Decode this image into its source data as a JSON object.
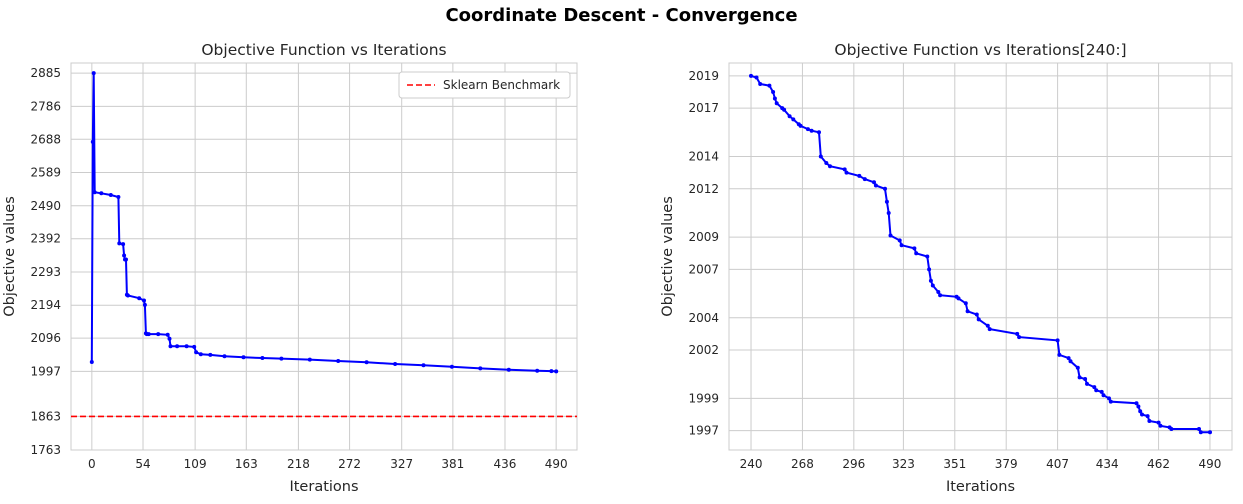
{
  "figure": {
    "suptitle": "Coordinate Descent - Convergence"
  },
  "chart_data": [
    {
      "type": "line",
      "title": "Objective Function vs Iterations",
      "xlabel": "Iterations",
      "ylabel": "Objective values",
      "xlim": [
        -22,
        512
      ],
      "ylim": [
        1763,
        2915
      ],
      "xticks": [
        0,
        54,
        109,
        163,
        218,
        272,
        327,
        381,
        436,
        490
      ],
      "yticks": [
        1763,
        1863,
        1997,
        2096,
        2194,
        2293,
        2392,
        2490,
        2589,
        2688,
        2786,
        2885
      ],
      "grid": true,
      "legend": {
        "position": "top-right",
        "entries": [
          "Sklearn Benchmark"
        ]
      },
      "series": [
        {
          "color": "#0000ff",
          "style": "solid-with-markers",
          "x": [
            0,
            1,
            2,
            3,
            10,
            20,
            28,
            29,
            33,
            34,
            35,
            36,
            37,
            38,
            50,
            55,
            56,
            57,
            58,
            60,
            70,
            80,
            82,
            83,
            90,
            100,
            108,
            110,
            115,
            125,
            140,
            160,
            180,
            200,
            230,
            260,
            290,
            320,
            350,
            380,
            410,
            440,
            470,
            485,
            490
          ],
          "y": [
            2025,
            2680,
            2885,
            2530,
            2527,
            2522,
            2516,
            2378,
            2376,
            2342,
            2330,
            2330,
            2225,
            2223,
            2215,
            2208,
            2195,
            2110,
            2108,
            2108,
            2108,
            2106,
            2094,
            2072,
            2072,
            2072,
            2070,
            2054,
            2048,
            2046,
            2042,
            2039,
            2037,
            2035,
            2032,
            2028,
            2024,
            2019,
            2015,
            2011,
            2006,
            2002,
            1999,
            1998,
            1997
          ]
        },
        {
          "name": "Sklearn Benchmark",
          "color": "#ff0000",
          "style": "dashed",
          "y": 1863
        }
      ]
    },
    {
      "type": "line",
      "title": "Objective Function vs Iterations[240:]",
      "xlabel": "Iterations",
      "ylabel": "Objective values",
      "xlim": [
        228,
        502
      ],
      "ylim": [
        1995.8,
        2019.8
      ],
      "xticks": [
        240,
        268,
        296,
        323,
        351,
        379,
        407,
        434,
        462,
        490
      ],
      "yticks": [
        1997,
        1999,
        2002,
        2004,
        2007,
        2009,
        2012,
        2014,
        2017,
        2019
      ],
      "grid": true,
      "series": [
        {
          "color": "#0000ff",
          "style": "solid-with-markers",
          "x": [
            240,
            243,
            245,
            250,
            252,
            253,
            254,
            257,
            258,
            261,
            263,
            266,
            267,
            271,
            273,
            277,
            278,
            281,
            283,
            291,
            292,
            299,
            302,
            307,
            308,
            313,
            314,
            315,
            316,
            321,
            322,
            329,
            330,
            336,
            337,
            338,
            339,
            342,
            343,
            352,
            353,
            357,
            358,
            363,
            364,
            369,
            370,
            385,
            386,
            407,
            408,
            413,
            414,
            418,
            419,
            422,
            423,
            427,
            428,
            431,
            432,
            435,
            436,
            450,
            451,
            452,
            453,
            456,
            457,
            462,
            463,
            468,
            469,
            484,
            485,
            490
          ],
          "y": [
            2019.0,
            2018.9,
            2018.5,
            2018.4,
            2018.0,
            2017.6,
            2017.3,
            2017.0,
            2016.9,
            2016.5,
            2016.3,
            2016.0,
            2015.9,
            2015.7,
            2015.6,
            2015.5,
            2014.0,
            2013.6,
            2013.4,
            2013.2,
            2013.0,
            2012.8,
            2012.6,
            2012.4,
            2012.2,
            2012.0,
            2011.2,
            2010.5,
            2009.1,
            2008.8,
            2008.5,
            2008.3,
            2008.0,
            2007.8,
            2007.0,
            2006.3,
            2006.0,
            2005.6,
            2005.4,
            2005.3,
            2005.2,
            2004.9,
            2004.4,
            2004.2,
            2003.9,
            2003.5,
            2003.3,
            2003.0,
            2002.8,
            2002.6,
            2001.7,
            2001.5,
            2001.3,
            2000.9,
            2000.3,
            2000.2,
            1999.9,
            1999.7,
            1999.5,
            1999.4,
            1999.2,
            1999.0,
            1998.8,
            1998.7,
            1998.5,
            1998.2,
            1998.0,
            1997.9,
            1997.6,
            1997.5,
            1997.3,
            1997.2,
            1997.1,
            1997.1,
            1996.9,
            1996.9
          ]
        }
      ]
    }
  ]
}
